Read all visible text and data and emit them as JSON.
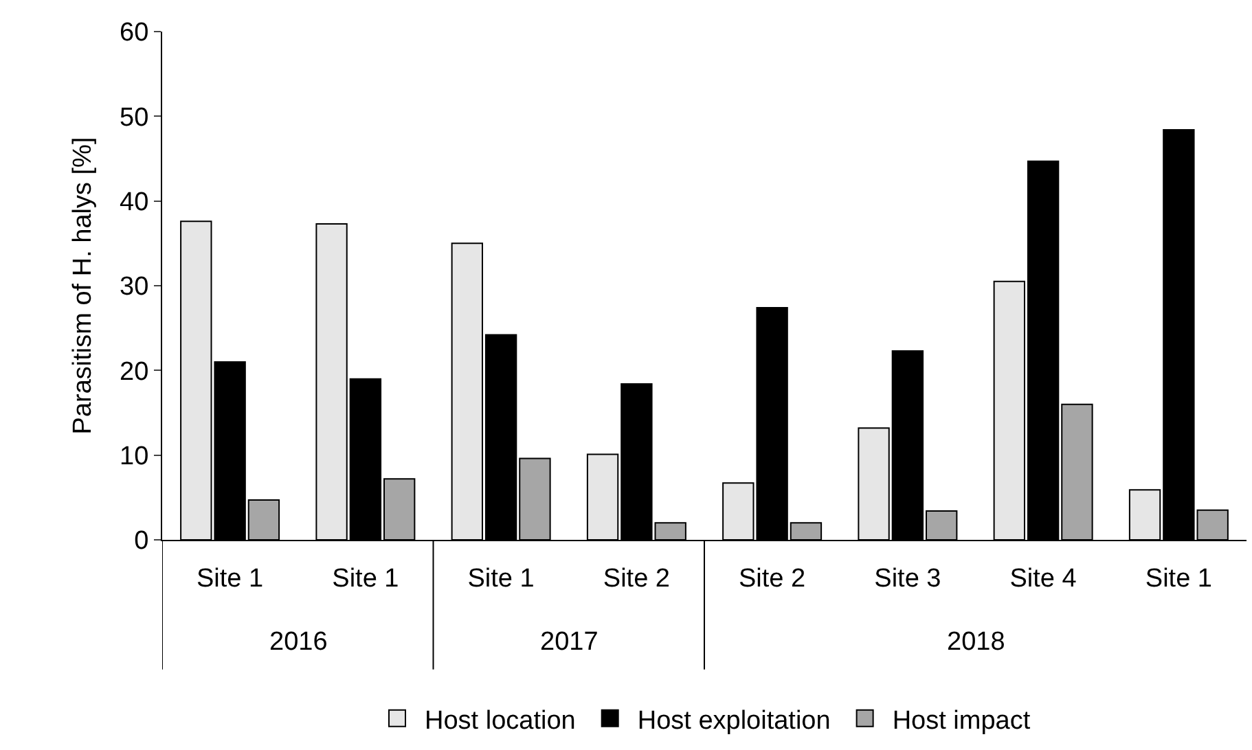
{
  "chart_data": {
    "type": "bar",
    "ylabel": "Parasitism of H. halys [%]",
    "categories": [
      "Site 1",
      "Site 1",
      "Site 1",
      "Site 2",
      "Site 2",
      "Site 3",
      "Site 4",
      "Site 1"
    ],
    "annotations": [
      "2016",
      "2017",
      "2018"
    ],
    "series": [
      {
        "name": "Host location",
        "color": "#e6e6e6",
        "values": [
          37.6,
          37.3,
          35.0,
          10.1,
          6.7,
          13.2,
          30.5,
          5.9
        ]
      },
      {
        "name": "Host exploitation",
        "color": "#000000",
        "values": [
          21.0,
          19.0,
          24.2,
          18.4,
          27.4,
          22.3,
          44.7,
          48.4
        ]
      },
      {
        "name": "Host impact",
        "color": "#a6a6a6",
        "values": [
          4.7,
          7.2,
          9.6,
          2.0,
          2.0,
          3.4,
          16.0,
          3.5
        ]
      }
    ],
    "ylim": [
      0,
      60
    ],
    "yticks": [
      0,
      10,
      20,
      30,
      40,
      50,
      60
    ],
    "legend": "bottom"
  }
}
